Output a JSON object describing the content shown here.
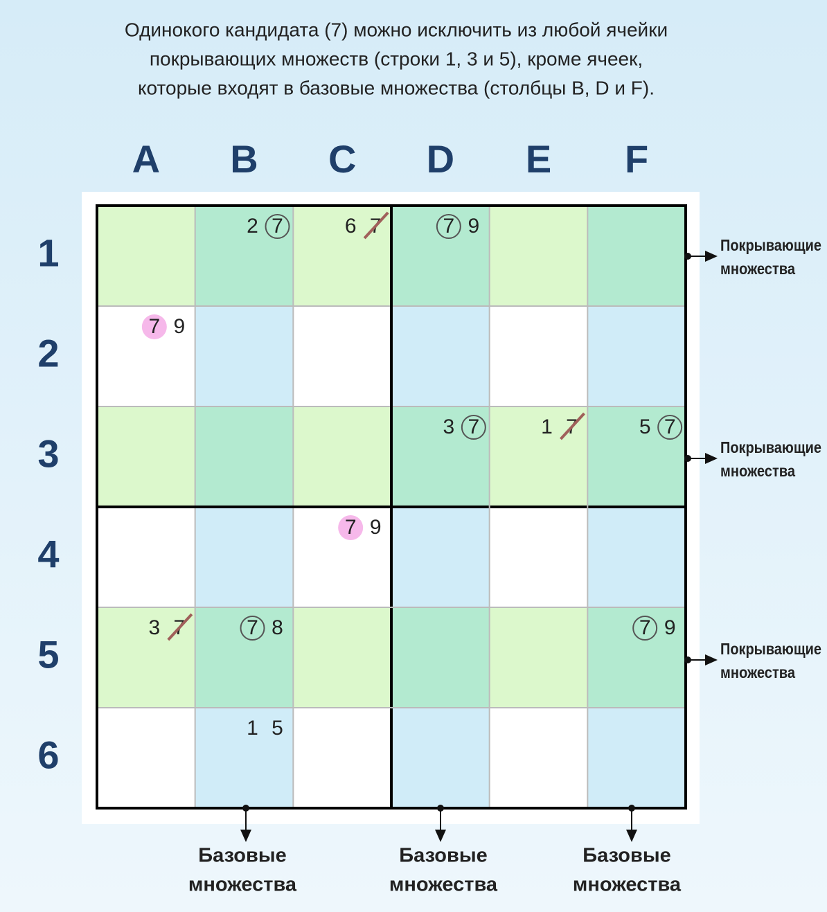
{
  "title": [
    "Одинокого кандидата (7) можно исключить из любой ячейки",
    "покрывающих множеств (строки 1, 3 и 5), кроме ячеек,",
    "которые входят в базовые множества (столбцы  B, D и F)."
  ],
  "columns": [
    "A",
    "B",
    "C",
    "D",
    "E",
    "F"
  ],
  "rows": [
    "1",
    "2",
    "3",
    "4",
    "5",
    "6"
  ],
  "grid": [
    [
      [],
      [
        {
          "digit": "2"
        },
        {
          "digit": "7",
          "mark": "circled"
        }
      ],
      [
        {
          "digit": "6"
        },
        {
          "digit": "7",
          "mark": "crossed"
        }
      ],
      [
        {
          "digit": "7",
          "mark": "circled"
        },
        {
          "digit": "9"
        }
      ],
      [],
      []
    ],
    [
      [
        {
          "digit": "7",
          "mark": "highlighted"
        },
        {
          "digit": "9"
        }
      ],
      [],
      [],
      [],
      [],
      []
    ],
    [
      [],
      [],
      [],
      [
        {
          "digit": "3"
        },
        {
          "digit": "7",
          "mark": "circled"
        }
      ],
      [
        {
          "digit": "1"
        },
        {
          "digit": "7",
          "mark": "crossed"
        }
      ],
      [
        {
          "digit": "5"
        },
        {
          "digit": "7",
          "mark": "circled"
        }
      ]
    ],
    [
      [],
      [],
      [
        {
          "digit": "7",
          "mark": "highlighted"
        },
        {
          "digit": "9"
        }
      ],
      [],
      [],
      []
    ],
    [
      [
        {
          "digit": "3"
        },
        {
          "digit": "7",
          "mark": "crossed"
        }
      ],
      [
        {
          "digit": "7",
          "mark": "circled"
        },
        {
          "digit": "8"
        }
      ],
      [],
      [],
      [],
      [
        {
          "digit": "7",
          "mark": "circled"
        },
        {
          "digit": "9"
        }
      ]
    ],
    [
      [],
      [
        {
          "digit": "1"
        },
        {
          "digit": "5"
        }
      ],
      [],
      [],
      [],
      []
    ]
  ],
  "cover_sets": [
    [
      "Покрывающие",
      "множества"
    ],
    [
      "Покрывающие",
      "множества"
    ],
    [
      "Покрывающие",
      "множества"
    ]
  ],
  "base_sets": [
    [
      "Базовые",
      "множества"
    ],
    [
      "Базовые",
      "множества"
    ],
    [
      "Базовые",
      "множества"
    ]
  ]
}
